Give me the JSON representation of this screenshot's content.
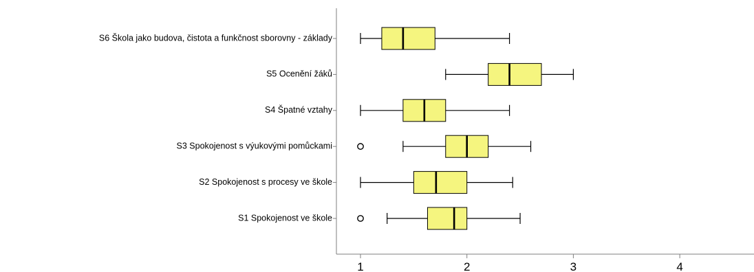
{
  "chart_data": {
    "type": "boxplot",
    "orientation": "horizontal",
    "title": "",
    "xlabel": "",
    "ylabel": "",
    "xlim": [
      0.8,
      4.7
    ],
    "x_ticks": [
      1,
      2,
      3,
      4
    ],
    "grid": false,
    "legend": "none",
    "box_color": "#f5f57f",
    "line_color": "#000000",
    "axis_color": "#7f7f7f",
    "categories": [
      "S6 Škola jako budova, čistota a funkčnost sborovny - základy",
      "S5 Ocenění žáků",
      "S4 Špatné vztahy",
      "S3 Spokojenost s výukovými pomůckami",
      "S2 Spokojenost s procesy ve škole",
      "S1 Spokojenost ve škole"
    ],
    "boxes": [
      {
        "whisker_low": 1.0,
        "q1": 1.2,
        "median": 1.4,
        "q3": 1.7,
        "whisker_high": 2.4,
        "outliers": []
      },
      {
        "whisker_low": 1.8,
        "q1": 2.2,
        "median": 2.4,
        "q3": 2.7,
        "whisker_high": 3.0,
        "outliers": []
      },
      {
        "whisker_low": 1.0,
        "q1": 1.4,
        "median": 1.6,
        "q3": 1.8,
        "whisker_high": 2.4,
        "outliers": []
      },
      {
        "whisker_low": 1.4,
        "q1": 1.8,
        "median": 2.0,
        "q3": 2.2,
        "whisker_high": 2.6,
        "outliers": [
          1.0
        ]
      },
      {
        "whisker_low": 1.0,
        "q1": 1.5,
        "median": 1.71,
        "q3": 2.0,
        "whisker_high": 2.43,
        "outliers": []
      },
      {
        "whisker_low": 1.25,
        "q1": 1.63,
        "median": 1.88,
        "q3": 2.0,
        "whisker_high": 2.5,
        "outliers": [
          1.0
        ]
      }
    ]
  }
}
